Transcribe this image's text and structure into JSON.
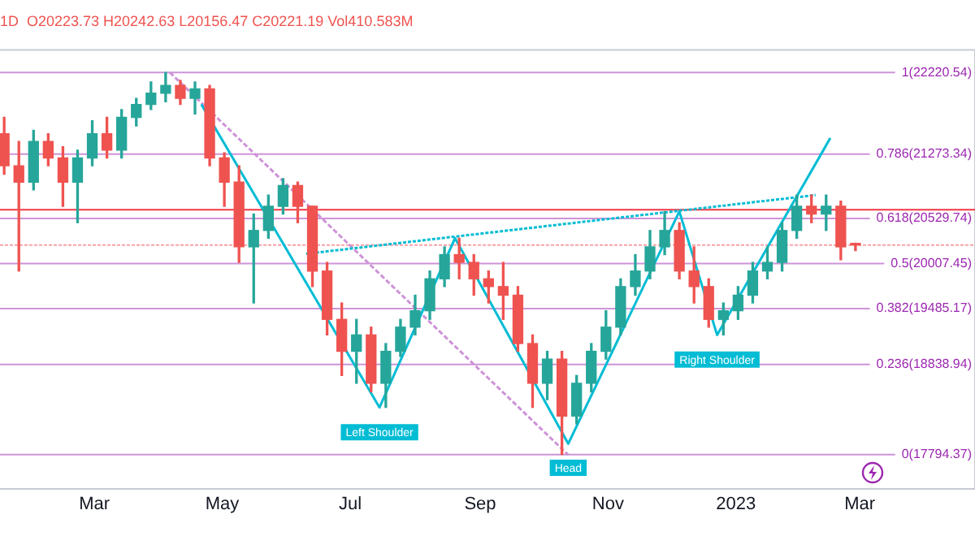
{
  "chart_data": {
    "type": "candlestick",
    "subtitle": "1D  O20223.73 H20242.63 L20156.47 C20221.19 Vol410.583M",
    "xlim": [
      "2022-01-15",
      "2023-04-25"
    ],
    "xticks": [
      {
        "value": "2022-03-01",
        "label": "Mar"
      },
      {
        "value": "2022-05-01",
        "label": "May"
      },
      {
        "value": "2022-07-01",
        "label": "Jul"
      },
      {
        "value": "2022-09-01",
        "label": "Sep"
      },
      {
        "value": "2022-11-01",
        "label": "Nov"
      },
      {
        "value": "2023-01-01",
        "label": "2023"
      },
      {
        "value": "2023-03-01",
        "label": "Mar"
      }
    ],
    "ylim": [
      17400,
      22480
    ],
    "tick_labels": "x",
    "grid": false,
    "legend": false,
    "series": [
      {
        "x": [
          "2022-01-17",
          "2022-01-24",
          "2022-01-31",
          "2022-02-07",
          "2022-02-14",
          "2022-02-21",
          "2022-02-28",
          "2022-03-07",
          "2022-03-14",
          "2022-03-21",
          "2022-03-28",
          "2022-04-04",
          "2022-04-11",
          "2022-04-18",
          "2022-04-25",
          "2022-05-02",
          "2022-05-09",
          "2022-05-16",
          "2022-05-23",
          "2022-05-30",
          "2022-06-06",
          "2022-06-13",
          "2022-06-20",
          "2022-06-27",
          "2022-07-04",
          "2022-07-11",
          "2022-07-18",
          "2022-07-25",
          "2022-08-01",
          "2022-08-08",
          "2022-08-15",
          "2022-08-22",
          "2022-08-29",
          "2022-09-05",
          "2022-09-12",
          "2022-09-19",
          "2022-09-26",
          "2022-10-03",
          "2022-10-10",
          "2022-10-17",
          "2022-10-24",
          "2022-10-31",
          "2022-11-07",
          "2022-11-14",
          "2022-11-21",
          "2022-11-28",
          "2022-12-05",
          "2022-12-12",
          "2022-12-19",
          "2022-12-26",
          "2023-01-02",
          "2023-01-09",
          "2023-01-16",
          "2023-01-23",
          "2023-01-30",
          "2023-02-06",
          "2023-02-13",
          "2023-02-20",
          "2023-02-27"
        ],
        "ohlc": [
          [
            21510,
            21700,
            21040,
            21140
          ],
          [
            21140,
            21420,
            19920,
            20950
          ],
          [
            20950,
            21550,
            20860,
            21420
          ],
          [
            21420,
            21510,
            21140,
            21230
          ],
          [
            21230,
            21360,
            20670,
            20950
          ],
          [
            20950,
            21320,
            20480,
            21230
          ],
          [
            21230,
            21660,
            21140,
            21510
          ],
          [
            21510,
            21700,
            21230,
            21320
          ],
          [
            21320,
            21790,
            21230,
            21700
          ],
          [
            21700,
            21920,
            21600,
            21850
          ],
          [
            21850,
            22110,
            21790,
            21980
          ],
          [
            21980,
            22220.54,
            21880,
            22070
          ],
          [
            22070,
            22130,
            21850,
            21920
          ],
          [
            21920,
            22110,
            21740,
            22030
          ],
          [
            22030,
            22070,
            21140,
            21230
          ],
          [
            21230,
            21290,
            20670,
            20950
          ],
          [
            20950,
            21140,
            20020,
            20200
          ],
          [
            20200,
            20580,
            19550,
            20390
          ],
          [
            20390,
            20800,
            20300,
            20670
          ],
          [
            20670,
            20990,
            20580,
            20910
          ],
          [
            20910,
            20950,
            20480,
            20670
          ],
          [
            20670,
            20670,
            19740,
            19920
          ],
          [
            19920,
            20020,
            19180,
            19360
          ],
          [
            19360,
            19550,
            18710,
            18990
          ],
          [
            18990,
            19360,
            18620,
            19180
          ],
          [
            19180,
            19270,
            18520,
            18620
          ],
          [
            18620,
            19080,
            18340,
            18990
          ],
          [
            18990,
            19360,
            18930,
            19270
          ],
          [
            19270,
            19640,
            19180,
            19460
          ],
          [
            19460,
            19920,
            19360,
            19830
          ],
          [
            19830,
            20200,
            19740,
            20110
          ],
          [
            20110,
            20300,
            19830,
            20020
          ],
          [
            20020,
            20110,
            19640,
            19830
          ],
          [
            19830,
            19920,
            19550,
            19740
          ],
          [
            19740,
            20020,
            19360,
            19640
          ],
          [
            19640,
            19740,
            18990,
            19080
          ],
          [
            19080,
            19180,
            18340,
            18620
          ],
          [
            18620,
            18990,
            18430,
            18900
          ],
          [
            18900,
            18990,
            17794.37,
            18240
          ],
          [
            18240,
            18710,
            18150,
            18620
          ],
          [
            18620,
            19080,
            18520,
            18990
          ],
          [
            18990,
            19460,
            18900,
            19270
          ],
          [
            19270,
            19830,
            19180,
            19740
          ],
          [
            19740,
            20110,
            19640,
            19920
          ],
          [
            19920,
            20390,
            19830,
            20200
          ],
          [
            20200,
            20610,
            20110,
            20390
          ],
          [
            20390,
            20480,
            19830,
            19920
          ],
          [
            19920,
            20200,
            19550,
            19740
          ],
          [
            19740,
            19830,
            19270,
            19360
          ],
          [
            19360,
            19550,
            19180,
            19460
          ],
          [
            19460,
            19740,
            19360,
            19640
          ],
          [
            19640,
            20020,
            19550,
            19920
          ],
          [
            19920,
            20200,
            19830,
            20020
          ],
          [
            20020,
            20480,
            19920,
            20390
          ],
          [
            20390,
            20800,
            20300,
            20670
          ],
          [
            20670,
            20800,
            20480,
            20580
          ],
          [
            20580,
            20800,
            20390,
            20670
          ],
          [
            20670,
            20730,
            20050,
            20200
          ],
          [
            20223.73,
            20242.63,
            20156.47,
            20221.19
          ]
        ],
        "colors": [
          "#ef5350",
          "#ef5350",
          "#26a69a",
          "#ef5350",
          "#ef5350",
          "#26a69a",
          "#26a69a",
          "#ef5350",
          "#26a69a",
          "#26a69a",
          "#26a69a",
          "#26a69a",
          "#ef5350",
          "#26a69a",
          "#ef5350",
          "#ef5350",
          "#ef5350",
          "#26a69a",
          "#26a69a",
          "#26a69a",
          "#ef5350",
          "#ef5350",
          "#ef5350",
          "#ef5350",
          "#26a69a",
          "#ef5350",
          "#26a69a",
          "#26a69a",
          "#26a69a",
          "#26a69a",
          "#26a69a",
          "#ef5350",
          "#ef5350",
          "#ef5350",
          "#ef5350",
          "#ef5350",
          "#ef5350",
          "#26a69a",
          "#ef5350",
          "#26a69a",
          "#26a69a",
          "#26a69a",
          "#26a69a",
          "#26a69a",
          "#26a69a",
          "#26a69a",
          "#ef5350",
          "#ef5350",
          "#ef5350",
          "#26a69a",
          "#26a69a",
          "#26a69a",
          "#26a69a",
          "#26a69a",
          "#26a69a",
          "#ef5350",
          "#26a69a",
          "#ef5350",
          "#ef5350"
        ]
      },
      {
        "type": "line",
        "x": [
          "2022-04-21",
          "2022-07-15",
          "2022-08-20",
          "2022-10-13",
          "2022-12-05",
          "2022-12-23",
          "2023-02-15"
        ],
        "values": [
          21850,
          18340,
          20300,
          17920,
          20610,
          19180,
          21460
        ],
        "color": "#00bcd4",
        "line_style": "solid"
      },
      {
        "type": "line",
        "x": [
          "2022-06-10",
          "2023-02-08"
        ],
        "values": [
          20120,
          20800
        ],
        "color": "#00bcd4",
        "line_style": "dotted"
      },
      {
        "type": "line",
        "x": [
          "2022-04-06",
          "2022-10-13"
        ],
        "values": [
          22220,
          17790
        ],
        "color": "#ce93d8",
        "line_style": "dashed"
      }
    ],
    "ref_lines": [
      {
        "axis": "y",
        "value": 22220.54,
        "label": "1(22220.54)",
        "color": "#ce93d8"
      },
      {
        "axis": "y",
        "value": 21273.34,
        "label": "0.786(21273.34)",
        "color": "#ce93d8"
      },
      {
        "axis": "y",
        "value": 20529.74,
        "label": "0.618(20529.74)",
        "color": "#ce93d8"
      },
      {
        "axis": "y",
        "value": 20007.45,
        "label": "0.5(20007.45)",
        "color": "#ce93d8"
      },
      {
        "axis": "y",
        "value": 19485.17,
        "label": "0.382(19485.17)",
        "color": "#ce93d8"
      },
      {
        "axis": "y",
        "value": 18838.94,
        "label": "0.236(18838.94)",
        "color": "#ce93d8"
      },
      {
        "axis": "y",
        "value": 17794.37,
        "label": "0(17794.37)",
        "color": "#ce93d8"
      },
      {
        "axis": "y",
        "value": 20630,
        "color": "#f23645",
        "line_style": "solid"
      },
      {
        "axis": "y",
        "value": 20221.19,
        "color": "#f7a1a8",
        "line_style": "dotted"
      }
    ],
    "annotations": [
      {
        "text": "Left Shoulder",
        "x": "2022-07-15",
        "y": 18335
      },
      {
        "text": "Head",
        "x": "2022-10-13",
        "y": 17924
      },
      {
        "text": "Right Shoulder",
        "x": "2022-12-23",
        "y": 19176
      }
    ]
  }
}
